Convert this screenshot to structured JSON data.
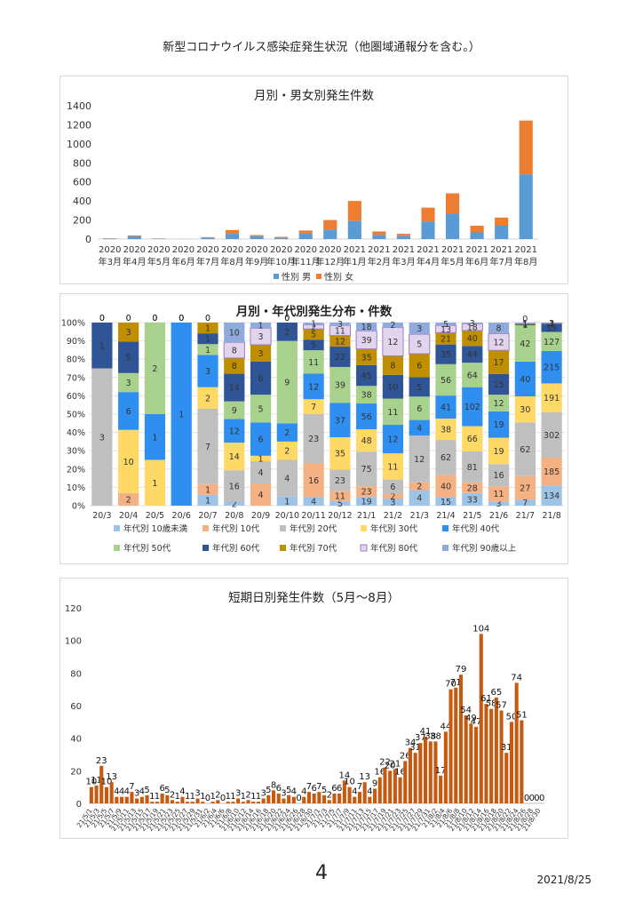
{
  "document": {
    "title": "新型コロナウイルス感染症発生状況（他圏域通報分を含む。）",
    "page_number": "4",
    "date": "2021/8/25"
  },
  "colors": {
    "male": "#5b9bd5",
    "female": "#ed7d31",
    "daily": "#c55a11",
    "age": [
      "#9dc3e6",
      "#f4b183",
      "#bfbfbf",
      "#ffd966",
      "#2e8ff0",
      "#a9d18e",
      "#2f5597",
      "#bf8f00",
      "#e2d4ec",
      "#8faadc"
    ]
  },
  "chart_data": [
    {
      "type": "bar",
      "stacked": true,
      "title": "月別・男女別発生件数",
      "categories": [
        "2020年3月",
        "2020年4月",
        "2020年5月",
        "2020年6月",
        "2020年7月",
        "2020年8月",
        "2020年9月",
        "2020年10月",
        "2020年11月",
        "2020年12月",
        "2021年1月",
        "2021年2月",
        "2021年3月",
        "2021年4月",
        "2021年5月",
        "2021年6月",
        "2021年7月",
        "2021年8月"
      ],
      "category_lines": [
        [
          "2020",
          "年3月"
        ],
        [
          "2020",
          "年4月"
        ],
        [
          "2020",
          "年5月"
        ],
        [
          "2020",
          "年6月"
        ],
        [
          "2020",
          "年7月"
        ],
        [
          "2020",
          "年8月"
        ],
        [
          "2020",
          "年9月"
        ],
        [
          "2020",
          "年10月"
        ],
        [
          "2020",
          "年11月"
        ],
        [
          "2020",
          "年12月"
        ],
        [
          "2021",
          "年1月"
        ],
        [
          "2021",
          "年2月"
        ],
        [
          "2021",
          "年3月"
        ],
        [
          "2021",
          "年4月"
        ],
        [
          "2021",
          "年5月"
        ],
        [
          "2021",
          "年6月"
        ],
        [
          "2021",
          "年7月"
        ],
        [
          "2021",
          "年8月"
        ]
      ],
      "series": [
        {
          "name": "性別 男",
          "values": [
            5,
            28,
            4,
            1,
            10,
            55,
            30,
            15,
            60,
            100,
            190,
            45,
            35,
            185,
            270,
            70,
            140,
            680
          ]
        },
        {
          "name": "性別 女",
          "values": [
            3,
            10,
            2,
            0,
            10,
            40,
            12,
            8,
            30,
            100,
            210,
            35,
            20,
            145,
            210,
            70,
            85,
            565
          ]
        }
      ],
      "ylim": [
        0,
        1400
      ],
      "yticks": [
        0,
        200,
        400,
        600,
        800,
        1000,
        1200,
        1400
      ],
      "grid": false,
      "legend_position": "bottom"
    },
    {
      "type": "bar",
      "stacked": true,
      "normalized": true,
      "title": "月別・年代別発生分布・件数",
      "categories": [
        "20/3",
        "20/4",
        "20/5",
        "20/6",
        "20/7",
        "20/8",
        "20/9",
        "20/10",
        "20/11",
        "20/12",
        "21/1",
        "21/2",
        "21/3",
        "21/4",
        "21/5",
        "21/6",
        "21/7",
        "21/8"
      ],
      "yticks": [
        "0%",
        "10%",
        "20%",
        "30%",
        "40%",
        "50%",
        "60%",
        "70%",
        "80%",
        "90%",
        "100%"
      ],
      "series": [
        {
          "name": "年代別 10歳未満",
          "values": [
            0,
            0,
            0,
            0,
            1,
            2,
            0,
            1,
            4,
            5,
            19,
            3,
            4,
            15,
            33,
            3,
            7,
            134
          ]
        },
        {
          "name": "年代別 10代",
          "values": [
            0,
            2,
            0,
            0,
            1,
            0,
            4,
            0,
            16,
            11,
            23,
            2,
            2,
            40,
            28,
            11,
            27,
            185
          ]
        },
        {
          "name": "年代別 20代",
          "values": [
            3,
            0,
            0,
            0,
            7,
            16,
            4,
            4,
            23,
            23,
            75,
            6,
            12,
            62,
            81,
            16,
            62,
            302
          ]
        },
        {
          "name": "年代別 30代",
          "values": [
            0,
            10,
            1,
            0,
            2,
            14,
            1,
            2,
            7,
            35,
            48,
            11,
            0,
            38,
            66,
            19,
            30,
            191
          ]
        },
        {
          "name": "年代別 40代",
          "values": [
            0,
            6,
            1,
            1,
            3,
            12,
            6,
            2,
            12,
            37,
            56,
            12,
            4,
            41,
            102,
            19,
            40,
            215
          ]
        },
        {
          "name": "年代別 50代",
          "values": [
            0,
            3,
            2,
            0,
            1,
            9,
            5,
            9,
            11,
            39,
            38,
            11,
            6,
            56,
            64,
            12,
            42,
            127
          ]
        },
        {
          "name": "年代別 60代",
          "values": [
            1,
            5,
            0,
            0,
            1,
            14,
            6,
            2,
            5,
            22,
            45,
            10,
            5,
            35,
            44,
            15,
            1,
            55
          ]
        },
        {
          "name": "年代別 70代",
          "values": [
            0,
            3,
            0,
            0,
            1,
            8,
            3,
            0,
            5,
            12,
            35,
            8,
            6,
            21,
            40,
            17,
            1,
            3
          ]
        },
        {
          "name": "年代別 80代",
          "values": [
            0,
            0,
            0,
            0,
            0,
            8,
            3,
            0,
            2,
            11,
            39,
            12,
            5,
            13,
            18,
            12,
            0,
            1
          ]
        },
        {
          "name": "年代別 90歳以上",
          "values": [
            0,
            0,
            0,
            0,
            0,
            10,
            1,
            0,
            1,
            3,
            18,
            2,
            3,
            5,
            3,
            8,
            1,
            3
          ]
        }
      ],
      "legend_position": "bottom"
    },
    {
      "type": "bar",
      "title": "短期日別発生件数（5月～8月）",
      "ylim": [
        0,
        120
      ],
      "yticks": [
        0,
        20,
        40,
        60,
        80,
        100,
        120
      ],
      "x_tick_labels": [
        "21/5/1",
        "21/5/3",
        "21/5/5",
        "21/5/7",
        "21/5/9",
        "21/5/11",
        "21/5/13",
        "21/5/15",
        "21/5/17",
        "21/5/19",
        "21/5/21",
        "21/5/23",
        "21/5/25",
        "21/5/27",
        "21/5/29",
        "21/5/31",
        "21/6/2",
        "21/6/4",
        "21/6/6",
        "21/6/8",
        "21/6/10",
        "21/6/12",
        "21/6/14",
        "21/6/16",
        "21/6/18",
        "21/6/20",
        "21/6/22",
        "21/6/24",
        "21/6/26",
        "21/6/28",
        "21/6/30",
        "21/7/1",
        "21/7/3",
        "21/7/5",
        "21/7/7",
        "21/7/9",
        "21/7/11",
        "21/7/13",
        "21/7/15",
        "21/7/17",
        "21/7/19",
        "21/7/21",
        "21/7/23",
        "21/7/25",
        "21/7/27",
        "21/7/29",
        "21/7/31",
        "21/8/2",
        "21/8/4",
        "21/8/6",
        "21/8/8",
        "21/8/10",
        "21/8/12",
        "21/8/14",
        "21/8/16",
        "21/8/18",
        "21/8/20",
        "21/8/22",
        "21/8/24",
        "21/8/26",
        "21/8/28",
        "21/8/30"
      ],
      "values": [
        10,
        11,
        23,
        10,
        13,
        4,
        4,
        4,
        7,
        3,
        4,
        5,
        1,
        1,
        6,
        5,
        2,
        1,
        4,
        1,
        1,
        3,
        1,
        0,
        1,
        2,
        0,
        1,
        1,
        3,
        1,
        2,
        1,
        1,
        3,
        5,
        8,
        6,
        3,
        5,
        4,
        0,
        4,
        7,
        6,
        7,
        5,
        2,
        6,
        6,
        14,
        10,
        4,
        7,
        13,
        4,
        9,
        16,
        22,
        20,
        21,
        16,
        26,
        34,
        31,
        37,
        41,
        38,
        38,
        17,
        44,
        70,
        71,
        79,
        54,
        49,
        47,
        104,
        61,
        58,
        65,
        57,
        31,
        50,
        74,
        51,
        0,
        0,
        0,
        0
      ],
      "value_labels": [
        "10",
        "11",
        "23",
        "10",
        "13",
        "4",
        "4",
        "4",
        "7",
        "3",
        "4",
        "5",
        "1",
        "1",
        "6",
        "5",
        "2",
        "1",
        "4",
        "1",
        "1",
        "3",
        "1",
        "0",
        "1",
        "2",
        "0",
        "1",
        "1",
        "3",
        "1",
        "2",
        "1",
        "1",
        "3",
        "5",
        "8",
        "6",
        "3",
        "5",
        "4",
        "0",
        "4",
        "7",
        "6",
        "7",
        "5",
        "2",
        "6",
        "6",
        "14",
        "10",
        "4",
        "7",
        "13",
        "4",
        "9",
        "16",
        "22",
        "20",
        "21",
        "16",
        "26",
        "34",
        "31",
        "37",
        "41",
        "38",
        "38",
        "17",
        "44",
        "70",
        "71",
        "79",
        "54",
        "49",
        "47",
        "104",
        "61",
        "58",
        "65",
        "57",
        "31",
        "50",
        "74",
        "51",
        "0",
        "0",
        "0",
        "0"
      ]
    }
  ]
}
